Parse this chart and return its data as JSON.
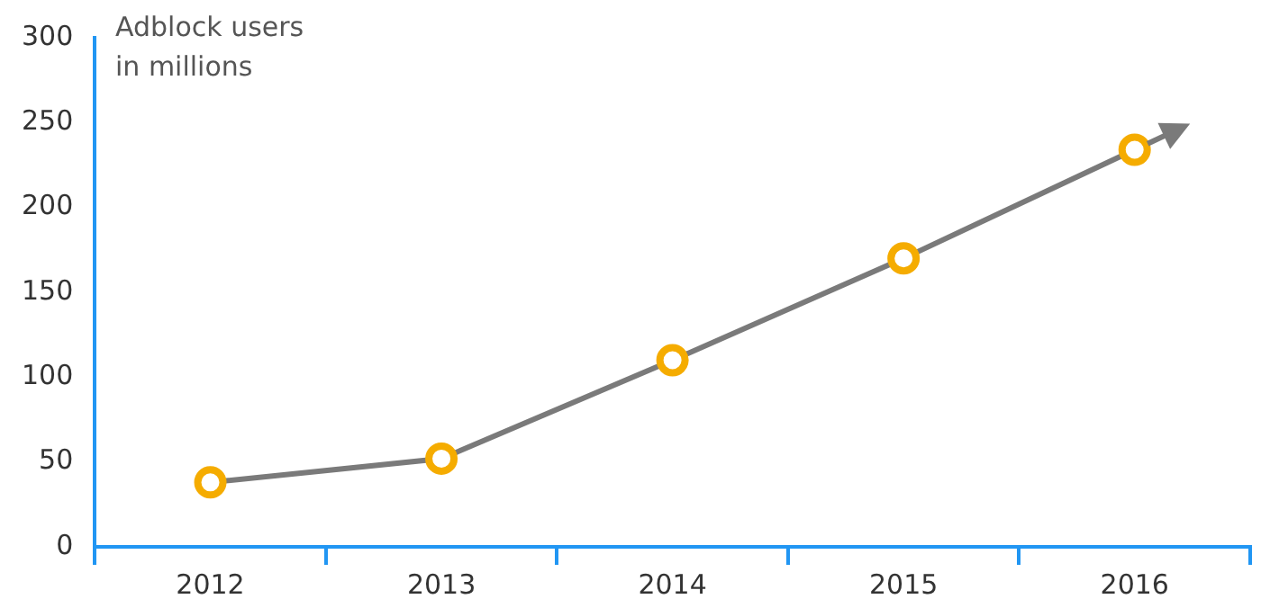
{
  "chart_data": {
    "type": "line",
    "ylabel": "Adblock users in millions",
    "categories": [
      "2012",
      "2013",
      "2014",
      "2015",
      "2016"
    ],
    "series": [
      {
        "color": "#7a7a7a",
        "colors": [
          "#f5ac00",
          "#f5ac00",
          "#f5ac00",
          "#f5ac00",
          "#f5ac00"
        ],
        "values": [
          38,
          52,
          110,
          170,
          234
        ]
      }
    ],
    "marker": "circle",
    "ylim": [
      0,
      300
    ],
    "yticks": [
      0,
      50,
      100,
      150,
      200,
      250,
      300
    ],
    "grid": false,
    "legend": false
  }
}
